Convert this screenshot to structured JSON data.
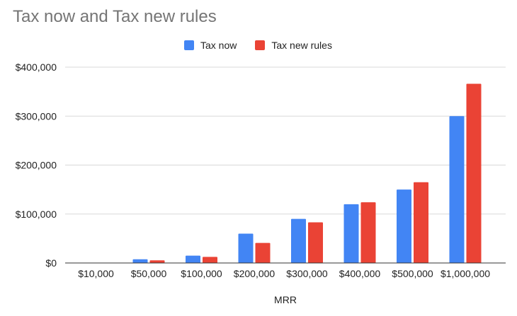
{
  "chart_data": {
    "type": "bar",
    "title": "Tax now and Tax new rules",
    "xlabel": "MRR",
    "ylabel": "",
    "categories": [
      "$10,000",
      "$50,000",
      "$100,000",
      "$200,000",
      "$300,000",
      "$400,000",
      "$500,000",
      "$1,000,000"
    ],
    "series": [
      {
        "name": "Tax now",
        "color": "#4285f4",
        "values": [
          0,
          7500,
          15000,
          60000,
          90000,
          120000,
          150000,
          300000
        ]
      },
      {
        "name": "Tax new rules",
        "color": "#ea4335",
        "values": [
          0,
          5500,
          12500,
          41000,
          83000,
          124000,
          165000,
          366000
        ]
      }
    ],
    "ylim": [
      0,
      400000
    ],
    "yticks": [
      0,
      100000,
      200000,
      300000,
      400000
    ],
    "ytick_labels": [
      "$0",
      "$100,000",
      "$200,000",
      "$300,000",
      "$400,000"
    ],
    "grid": true,
    "legend_position": "top"
  }
}
